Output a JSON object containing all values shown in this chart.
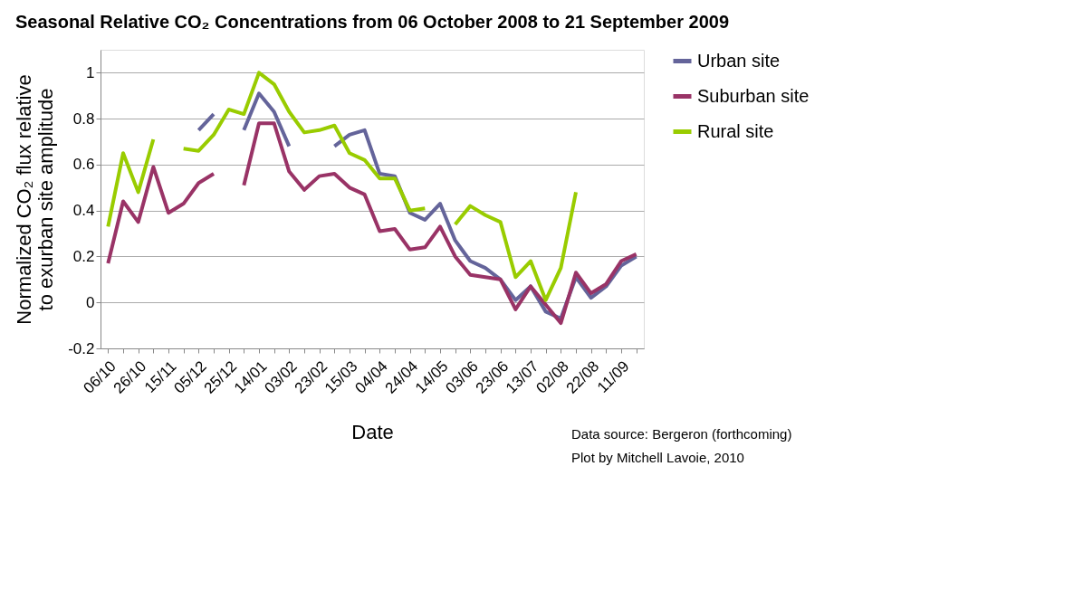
{
  "chart_data": {
    "type": "line",
    "title": "Seasonal Relative CO₂ Concentrations from 06 October 2008 to 21 September 2009",
    "xlabel": "Date",
    "ylabel": "Normalized CO₂ flux relative\nto exurban site  amplitude",
    "categories": [
      "06/10",
      null,
      "26/10",
      null,
      "15/11",
      null,
      "05/12",
      null,
      "25/12",
      null,
      "14/01",
      null,
      "03/02",
      null,
      "23/02",
      null,
      "15/03",
      null,
      "04/04",
      null,
      "24/04",
      null,
      "14/05",
      null,
      "03/06",
      null,
      "23/06",
      null,
      "13/07",
      null,
      "02/08",
      null,
      "22/08",
      null,
      "11/09",
      null
    ],
    "series": [
      {
        "name": "Urban site",
        "color": "#64649a",
        "values": [
          null,
          null,
          null,
          null,
          null,
          null,
          0.75,
          0.82,
          null,
          0.75,
          0.91,
          0.83,
          0.68,
          null,
          null,
          0.68,
          0.73,
          0.75,
          0.56,
          0.55,
          0.39,
          0.36,
          0.43,
          0.27,
          0.18,
          0.15,
          0.1,
          0.01,
          0.07,
          -0.04,
          -0.07,
          0.11,
          0.02,
          0.07,
          0.16,
          0.2
        ]
      },
      {
        "name": "Suburban site",
        "color": "#993366",
        "values": [
          0.17,
          0.44,
          0.35,
          0.59,
          0.39,
          0.43,
          0.52,
          0.56,
          null,
          0.51,
          0.78,
          0.78,
          0.57,
          0.49,
          0.55,
          0.56,
          0.5,
          0.47,
          0.31,
          0.32,
          0.23,
          0.24,
          0.33,
          0.2,
          0.12,
          0.11,
          0.1,
          -0.03,
          0.07,
          -0.01,
          -0.09,
          0.13,
          0.04,
          0.08,
          0.18,
          0.21
        ]
      },
      {
        "name": "Rural site",
        "color": "#99cc00",
        "values": [
          0.33,
          0.65,
          0.48,
          0.71,
          null,
          0.67,
          0.66,
          0.73,
          0.84,
          0.82,
          1.0,
          0.95,
          0.83,
          0.74,
          0.75,
          0.77,
          0.65,
          0.62,
          0.54,
          0.54,
          0.4,
          0.41,
          null,
          0.34,
          0.42,
          0.38,
          0.35,
          0.11,
          0.18,
          0.01,
          0.15,
          0.48,
          null,
          null,
          null,
          null
        ]
      }
    ],
    "ylim": [
      -0.2,
      1.1
    ],
    "yticks": [
      -0.2,
      0,
      0.2,
      0.4,
      0.6,
      0.8,
      1
    ],
    "grid": "y",
    "legend": "right",
    "marker": "none",
    "line_style": "solid",
    "annotations": [
      "Data source: Bergeron (forthcoming)",
      "Plot by Mitchell Lavoie, 2010"
    ]
  }
}
